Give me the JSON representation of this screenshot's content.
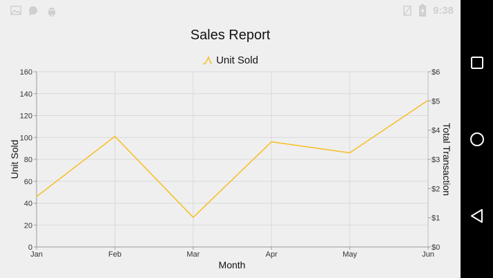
{
  "status_bar": {
    "time": "9:38",
    "left_icons": [
      "image-icon",
      "chat-bubble-icon",
      "android-icon"
    ],
    "right_icons": [
      "no-sim-icon",
      "battery-charging-icon"
    ]
  },
  "navigation_bar": {
    "buttons": [
      "recent-apps",
      "home",
      "back"
    ]
  },
  "chart_data": {
    "type": "line",
    "title": "Sales Report",
    "categories": [
      "Jan",
      "Feb",
      "Mar",
      "Apr",
      "May",
      "Jun"
    ],
    "series": [
      {
        "name": "Unit Sold",
        "values": [
          46,
          101,
          27,
          96,
          86,
          134
        ],
        "color": "#f7c02a"
      }
    ],
    "xlabel": "Month",
    "ylabel": "Unit Sold",
    "ylim": [
      0,
      160
    ],
    "yticks": [
      0,
      20,
      40,
      60,
      80,
      100,
      120,
      140,
      160
    ],
    "y2label": "Total Transaction",
    "y2lim": [
      0,
      6
    ],
    "y2ticks": [
      "$0",
      "$1",
      "$2",
      "$3",
      "$4",
      "$5",
      "$6"
    ],
    "grid": true,
    "legend_position": "top-center"
  }
}
